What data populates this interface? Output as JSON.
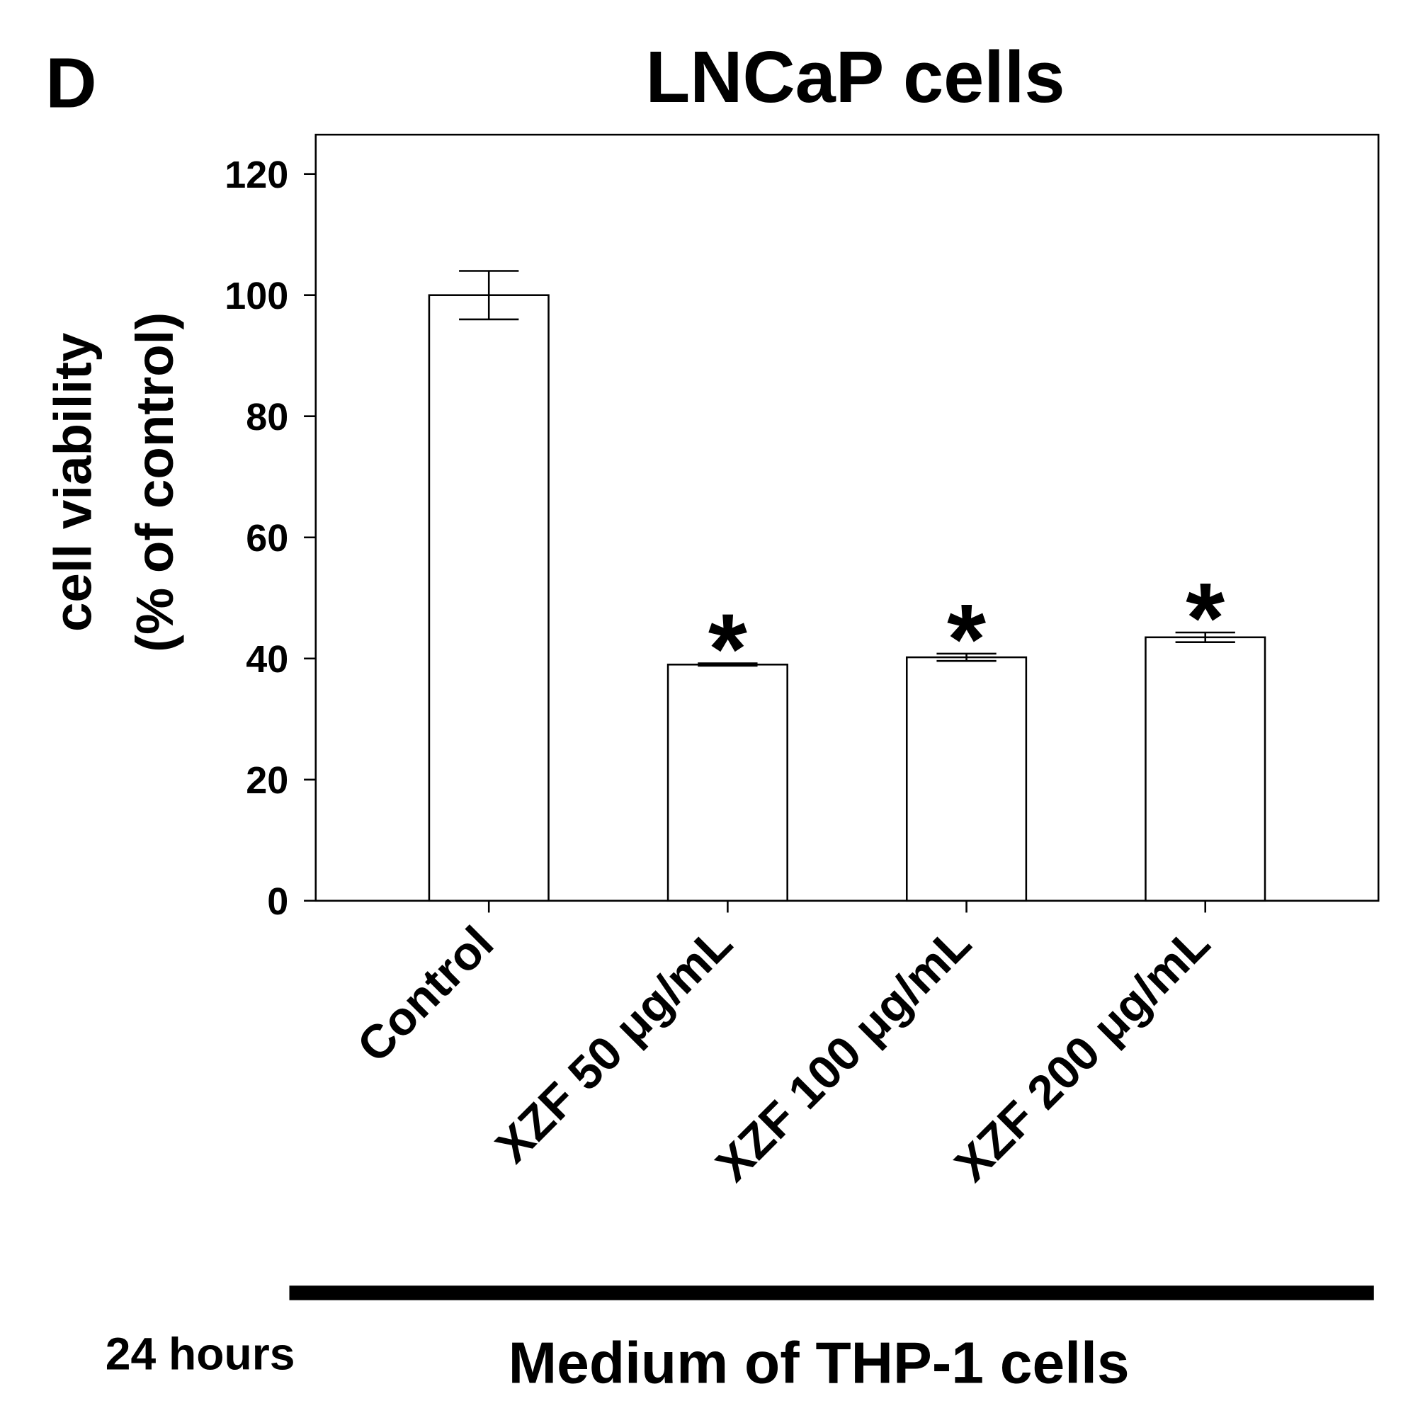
{
  "chart_data": {
    "type": "bar",
    "panel_label": "D",
    "title": "LNCaP cells",
    "y_label": [
      "cell viability",
      "(% of control)"
    ],
    "categories": [
      "Control",
      "XZF 50 μg/mL",
      "XZF 100 μg/mL",
      "XZF 200 μg/mL"
    ],
    "values": [
      100,
      39,
      40.2,
      43.5
    ],
    "errors": [
      4,
      0.2,
      0.6,
      0.8
    ],
    "markers": [
      null,
      "*",
      "*",
      "*"
    ],
    "color": "#ffffff",
    "ylim": [
      0,
      126.5
    ],
    "yticks": [
      0,
      20,
      40,
      60,
      80,
      100,
      120
    ],
    "group_label": "Medium of THP-1 cells",
    "time_label": "24 hours"
  }
}
